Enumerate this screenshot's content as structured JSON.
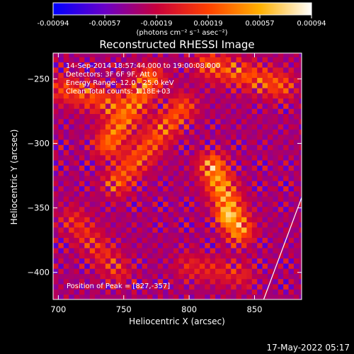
{
  "chart_data": {
    "type": "heatmap",
    "title": "Reconstructed RHESSI Image",
    "xlabel": "Heliocentric X (arcsec)",
    "ylabel": "Heliocentric Y (arcsec)",
    "xlim": [
      696,
      886
    ],
    "ylim": [
      -421,
      -230
    ],
    "x_ticks": [
      700,
      750,
      800,
      850
    ],
    "y_ticks": [
      -250,
      -300,
      -350,
      -400
    ],
    "colorbar": {
      "min": -0.00094,
      "max": 0.00094,
      "ticks": [
        "-0.00094",
        "-0.00057",
        "-0.00019",
        "0.00019",
        "0.00057",
        "0.00094"
      ],
      "label": "(photons cm⁻² s⁻¹ asec⁻²)",
      "colormap": [
        "#0000ff",
        "#6a00c8",
        "#c8003c",
        "#ff4000",
        "#ffb000",
        "#ffffff"
      ]
    },
    "annotations": [
      "14-Sep-2014 18:57:44.000 to 19:00:08.000",
      "Detectors: 3F 6F 9F, Att 0",
      "Energy Range: 12.0 - 25.0 keV",
      "Clean    Total counts: 1.18E+03"
    ],
    "peak_label": "Position of Peak = [827,-357]",
    "peak": [
      827,
      -357
    ],
    "ridges": [
      {
        "x": [
          705,
          737
        ],
        "y": [
          -258,
          -268
        ],
        "amplitude": 0.00055
      },
      {
        "x": [
          738,
          770
        ],
        "y": [
          -300,
          -250
        ],
        "amplitude": 0.00075
      },
      {
        "x": [
          745,
          795
        ],
        "y": [
          -330,
          -272
        ],
        "amplitude": 0.0006
      },
      {
        "x": [
          818,
          838
        ],
        "y": [
          -318,
          -367
        ],
        "amplitude": 0.00094
      },
      {
        "x": [
          815,
          870
        ],
        "y": [
          -239,
          -255
        ],
        "amplitude": 0.0006
      },
      {
        "x": [
          712,
          745
        ],
        "y": [
          -360,
          -398
        ],
        "amplitude": 0.0004
      },
      {
        "x": [
          800,
          840
        ],
        "y": [
          -395,
          -402
        ],
        "amplitude": 0.00035
      }
    ],
    "limb_line": {
      "x": [
        857,
        886
      ],
      "y": [
        -421,
        -342
      ]
    }
  },
  "timestamp": "17-May-2022 05:17"
}
